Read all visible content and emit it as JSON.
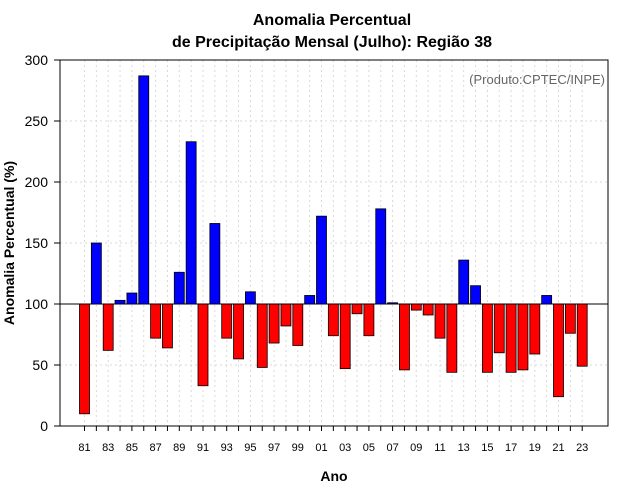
{
  "chart_data": {
    "type": "bar",
    "title": [
      "Anomalia Percentual",
      "de Precipitação Mensal (Julho): Região 38"
    ],
    "xlabel": "Ano",
    "ylabel": "Anomalia Percentual (%)",
    "annotation": "(Produto:CPTEC/INPE)",
    "baseline": 100,
    "ylim": [
      0,
      300
    ],
    "yticks": [
      0,
      50,
      100,
      150,
      200,
      250,
      300
    ],
    "grid": true,
    "categories": [
      "81",
      "82",
      "83",
      "84",
      "85",
      "86",
      "87",
      "88",
      "89",
      "90",
      "91",
      "92",
      "93",
      "94",
      "95",
      "96",
      "97",
      "98",
      "99",
      "00",
      "01",
      "02",
      "03",
      "04",
      "05",
      "06",
      "07",
      "08",
      "09",
      "10",
      "11",
      "12",
      "13",
      "14",
      "15",
      "16",
      "17",
      "18",
      "19",
      "20",
      "21",
      "22",
      "23"
    ],
    "tick_labels": [
      "81",
      "83",
      "85",
      "87",
      "89",
      "91",
      "93",
      "95",
      "97",
      "99",
      "01",
      "03",
      "05",
      "07",
      "09",
      "11",
      "13",
      "15",
      "17",
      "19",
      "21",
      "23"
    ],
    "values": [
      10,
      150,
      62,
      103,
      109,
      287,
      72,
      64,
      126,
      233,
      33,
      166,
      72,
      55,
      110,
      48,
      68,
      82,
      66,
      107,
      172,
      74,
      47,
      92,
      74,
      178,
      101,
      46,
      95,
      91,
      72,
      44,
      136,
      115,
      44,
      60,
      44,
      46,
      59,
      107,
      24,
      76,
      49
    ],
    "colors": {
      "above": "#0000ff",
      "below": "#ff0000",
      "grid": "#d9d9d9",
      "baseline": "#000000"
    }
  }
}
